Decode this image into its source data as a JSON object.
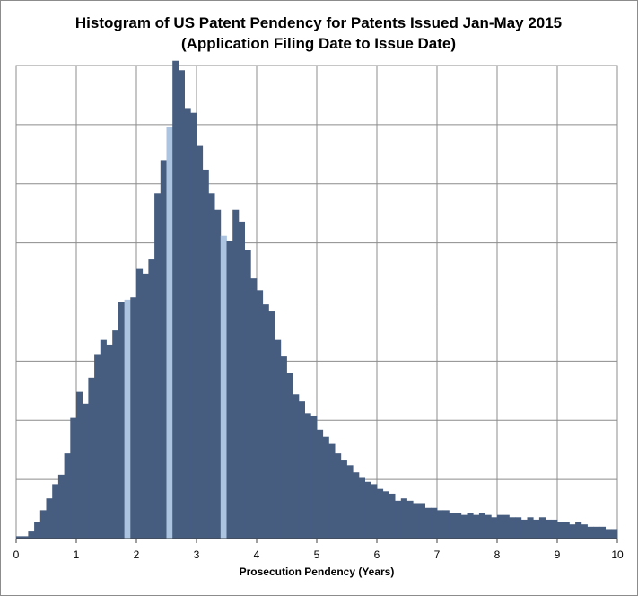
{
  "chart_data": {
    "type": "bar",
    "title_line1": "Histogram of US Patent Pendency for Patents Issued Jan-May 2015",
    "title_line2": "(Application Filing Date to Issue Date)",
    "xlabel": "Prosecution Pendency (Years)",
    "ylabel": "",
    "xlim": [
      0,
      10
    ],
    "ylim": [
      0,
      100
    ],
    "x_ticks": [
      "0",
      "1",
      "2",
      "3",
      "4",
      "5",
      "6",
      "7",
      "8",
      "9",
      "10"
    ],
    "y_ticks_labeled": false,
    "grid": true,
    "bin_width": 0.1,
    "colors": {
      "bar": "#465d80",
      "highlight": "#adc4e0",
      "grid": "#8c8c8c",
      "axis": "#404040"
    },
    "highlighted_bins": [
      18,
      25,
      34
    ],
    "values": [
      0.5,
      0.5,
      1.5,
      3.5,
      6.0,
      8.5,
      11.5,
      13.5,
      18.0,
      25.5,
      31.0,
      28.5,
      34.0,
      39.0,
      42.0,
      41.0,
      44.0,
      50.0,
      50.5,
      51.0,
      57.0,
      56.0,
      59.0,
      73.0,
      80.0,
      87.0,
      101.0,
      99.0,
      91.0,
      90.0,
      83.0,
      78.0,
      73.0,
      69.5,
      64.0,
      63.0,
      69.5,
      67.0,
      61.0,
      55.0,
      52.5,
      49.5,
      48.0,
      42.0,
      38.5,
      35.0,
      30.5,
      29.0,
      26.5,
      26.0,
      23.0,
      21.5,
      20.0,
      18.0,
      16.5,
      15.5,
      14.0,
      13.0,
      12.0,
      11.5,
      10.5,
      10.0,
      9.5,
      8.0,
      8.5,
      8.0,
      7.5,
      7.5,
      6.5,
      6.5,
      6.0,
      6.0,
      5.5,
      5.5,
      5.0,
      5.5,
      5.0,
      5.5,
      5.0,
      4.5,
      5.0,
      5.0,
      4.5,
      4.5,
      4.0,
      4.5,
      4.0,
      4.5,
      4.0,
      4.0,
      3.5,
      3.5,
      3.0,
      3.5,
      3.0,
      2.5,
      2.5,
      2.5,
      2.0,
      2.0
    ]
  }
}
